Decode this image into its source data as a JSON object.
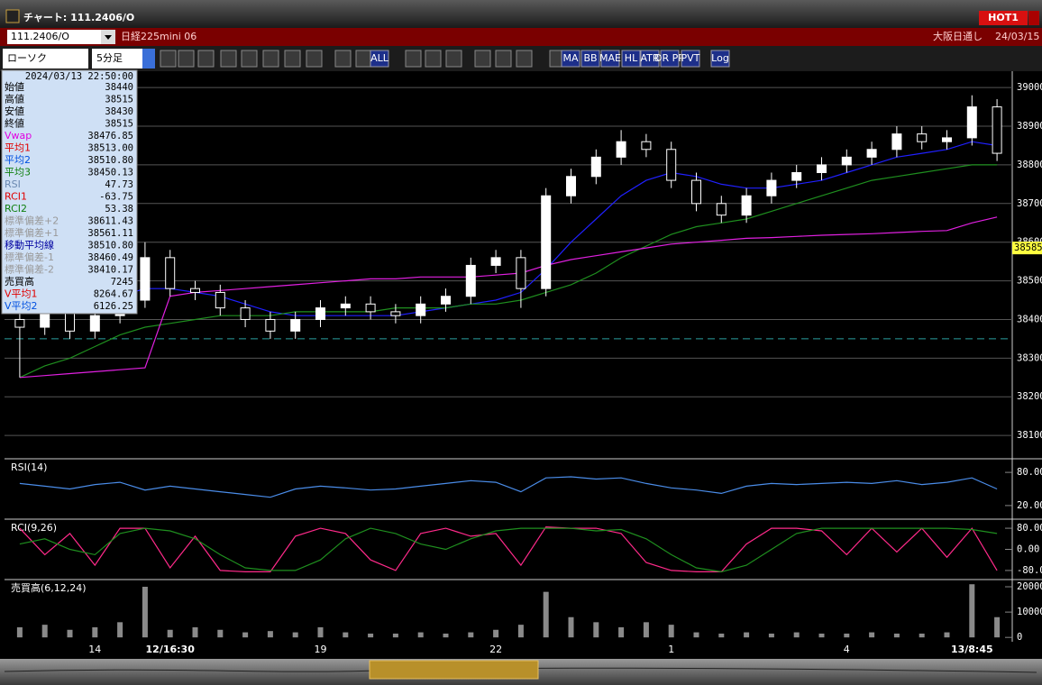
{
  "window": {
    "title": "チャート: 111.2406/O",
    "badge": "HOT1"
  },
  "header": {
    "symbol": "111.2406/O",
    "name": "日経225mini 06",
    "session": "大阪日通し",
    "date": "24/03/15"
  },
  "toolbar": {
    "chart_type": "ローソク",
    "interval": "5分足",
    "buttons": [
      "ALL",
      "MA",
      "BB",
      "MAE",
      "HL",
      "ATR",
      "DR PR",
      "PVT",
      "Log"
    ]
  },
  "info": {
    "datetime": "2024/03/13 22:50:00",
    "rows": [
      [
        "始値",
        "38440"
      ],
      [
        "高値",
        "38515"
      ],
      [
        "安値",
        "38430"
      ],
      [
        "終値",
        "38515"
      ],
      [
        "Vwap",
        "38476.85"
      ],
      [
        "平均1",
        "38513.00"
      ],
      [
        "平均2",
        "38510.80"
      ],
      [
        "平均3",
        "38450.13"
      ],
      [
        "RSI",
        "47.73"
      ],
      [
        "RCI1",
        "-63.75"
      ],
      [
        "RCI2",
        "53.38"
      ],
      [
        "標準偏差+2",
        "38611.43"
      ],
      [
        "標準偏差+1",
        "38561.11"
      ],
      [
        "移動平均線",
        "38510.80"
      ],
      [
        "標準偏差-1",
        "38460.49"
      ],
      [
        "標準偏差-2",
        "38410.17"
      ],
      [
        "売買高",
        "7245"
      ],
      [
        "V平均1",
        "8264.67"
      ],
      [
        "V平均2",
        "6126.25"
      ]
    ]
  },
  "chart_data": [
    {
      "type": "candlestick",
      "open": [
        38400,
        38380,
        38430,
        38370,
        38410,
        38450,
        38560,
        38480,
        38470,
        38430,
        38400,
        38370,
        38400,
        38430,
        38440,
        38420,
        38410,
        38440,
        38460,
        38540,
        38560,
        38480,
        38720,
        38770,
        38820,
        38860,
        38840,
        38760,
        38700,
        38670,
        38720,
        38760,
        38780,
        38800,
        38820,
        38840,
        38880,
        38860,
        38870,
        38950
      ],
      "high": [
        38420,
        38450,
        38450,
        38430,
        38470,
        38600,
        38580,
        38500,
        38490,
        38450,
        38420,
        38420,
        38450,
        38460,
        38460,
        38440,
        38460,
        38480,
        38560,
        38580,
        38580,
        38740,
        38790,
        38840,
        38890,
        38880,
        38860,
        38780,
        38720,
        38740,
        38780,
        38800,
        38820,
        38840,
        38860,
        38900,
        38900,
        38890,
        38980,
        38970
      ],
      "low": [
        38250,
        38360,
        38350,
        38350,
        38390,
        38430,
        38460,
        38450,
        38410,
        38380,
        38350,
        38350,
        38380,
        38410,
        38400,
        38390,
        38390,
        38420,
        38440,
        38520,
        38430,
        38460,
        38700,
        38750,
        38800,
        38820,
        38740,
        38680,
        38650,
        38650,
        38700,
        38740,
        38760,
        38780,
        38800,
        38820,
        38840,
        38840,
        38850,
        38810
      ],
      "close": [
        38380,
        38430,
        38370,
        38410,
        38450,
        38560,
        38480,
        38470,
        38430,
        38400,
        38370,
        38400,
        38430,
        38440,
        38420,
        38410,
        38440,
        38460,
        38540,
        38560,
        38480,
        38720,
        38770,
        38820,
        38860,
        38840,
        38760,
        38700,
        38670,
        38720,
        38760,
        38780,
        38800,
        38820,
        38840,
        38880,
        38860,
        38870,
        38950,
        38830
      ],
      "candle_color": "#ffffff",
      "series": [
        {
          "color": "#2020ff",
          "values": [
            38430,
            38440,
            38450,
            38450,
            38460,
            38480,
            38480,
            38470,
            38460,
            38440,
            38420,
            38410,
            38410,
            38410,
            38410,
            38410,
            38420,
            38430,
            38440,
            38450,
            38470,
            38530,
            38600,
            38660,
            38720,
            38760,
            38780,
            38770,
            38750,
            38740,
            38740,
            38750,
            38760,
            38780,
            38800,
            38820,
            38830,
            38840,
            38860,
            38850
          ]
        },
        {
          "color": "#1f8f1f",
          "values": [
            38250,
            38280,
            38300,
            38330,
            38360,
            38380,
            38390,
            38400,
            38410,
            38410,
            38410,
            38420,
            38420,
            38420,
            38420,
            38430,
            38430,
            38430,
            38440,
            38440,
            38450,
            38470,
            38490,
            38520,
            38560,
            38590,
            38620,
            38640,
            38650,
            38660,
            38680,
            38700,
            38720,
            38740,
            38760,
            38770,
            38780,
            38790,
            38800,
            38800
          ]
        },
        {
          "color": "#e020e0",
          "values": [
            38250,
            38255,
            38260,
            38265,
            38270,
            38275,
            38460,
            38470,
            38475,
            38480,
            38485,
            38490,
            38495,
            38500,
            38505,
            38505,
            38510,
            38510,
            38510,
            38515,
            38520,
            38540,
            38555,
            38565,
            38575,
            38585,
            38595,
            38600,
            38605,
            38610,
            38612,
            38615,
            38618,
            38620,
            38622,
            38625,
            38628,
            38630,
            38650,
            38665
          ]
        }
      ],
      "last_price": 38585,
      "hline": 38350,
      "ylim": [
        38042,
        39040
      ],
      "yticks": [
        38100,
        38200,
        38300,
        38400,
        38500,
        38600,
        38700,
        38800,
        38900,
        39000
      ],
      "grid": true
    },
    {
      "type": "line",
      "title": "RSI(14)",
      "series": [
        {
          "color": "#4a8ce8",
          "values": [
            60,
            55,
            50,
            58,
            62,
            48,
            55,
            50,
            45,
            40,
            35,
            50,
            55,
            52,
            48,
            50,
            55,
            60,
            65,
            62,
            45,
            70,
            72,
            68,
            70,
            60,
            52,
            48,
            42,
            55,
            60,
            58,
            60,
            62,
            60,
            65,
            58,
            62,
            70,
            50
          ]
        }
      ],
      "ylim": [
        -3,
        103
      ],
      "yticks": [
        {
          "value": 80,
          "label": "80.00"
        },
        {
          "value": 20,
          "label": "20.00"
        }
      ]
    },
    {
      "type": "line",
      "title": "RCI(9,26)",
      "series": [
        {
          "color": "#ff2a8a",
          "values": [
            80,
            -20,
            60,
            -60,
            80,
            80,
            -70,
            50,
            -80,
            -85,
            -85,
            50,
            80,
            60,
            -40,
            -80,
            60,
            80,
            50,
            60,
            -60,
            85,
            80,
            80,
            60,
            -50,
            -80,
            -85,
            -85,
            20,
            80,
            80,
            70,
            -20,
            80,
            -10,
            80,
            -30,
            80,
            -80
          ]
        },
        {
          "color": "#1f8f1f",
          "values": [
            20,
            40,
            0,
            -20,
            60,
            80,
            70,
            40,
            -20,
            -70,
            -80,
            -80,
            -40,
            40,
            80,
            60,
            20,
            0,
            40,
            70,
            80,
            80,
            80,
            70,
            75,
            40,
            -20,
            -70,
            -85,
            -60,
            0,
            60,
            80,
            80,
            80,
            80,
            80,
            80,
            75,
            60
          ]
        }
      ],
      "ylim": [
        -111,
        111
      ],
      "yticks": [
        {
          "value": 80,
          "label": "80.00"
        },
        {
          "value": 0,
          "label": "0.00"
        },
        {
          "value": -80,
          "label": "-80.0"
        }
      ]
    },
    {
      "type": "bar",
      "title": "売買高(6,12,24)",
      "categories": [
        null,
        null,
        null,
        "14",
        null,
        null,
        "12/16:30",
        null,
        null,
        null,
        null,
        null,
        "19",
        null,
        null,
        null,
        null,
        null,
        null,
        "22",
        null,
        null,
        null,
        null,
        null,
        null,
        "1",
        null,
        null,
        null,
        null,
        null,
        null,
        "4",
        null,
        null,
        null,
        null,
        "13/8:45",
        null
      ],
      "values": [
        4000,
        5000,
        3000,
        4000,
        6000,
        20000,
        3000,
        4000,
        3000,
        2000,
        2500,
        2000,
        4000,
        2000,
        1500,
        1500,
        2000,
        1500,
        2000,
        3000,
        5000,
        18000,
        8000,
        6000,
        4000,
        6000,
        5000,
        2000,
        1500,
        2000,
        1500,
        2000,
        1500,
        1500,
        2000,
        1500,
        1500,
        2000,
        21000,
        8000
      ],
      "color": "#8a8a8a",
      "ylim": [
        -1000,
        22500
      ],
      "yticks": [
        20000,
        10000,
        0
      ]
    }
  ]
}
